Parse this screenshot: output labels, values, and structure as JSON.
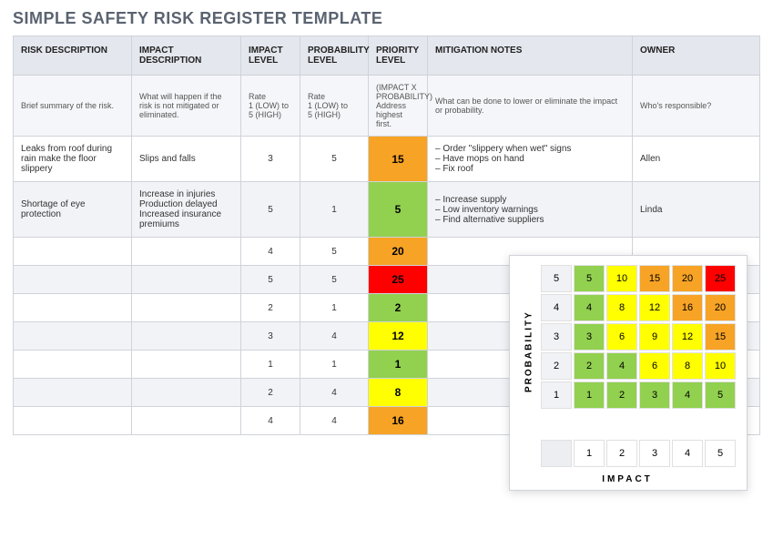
{
  "title": "SIMPLE SAFETY RISK REGISTER TEMPLATE",
  "columns": [
    {
      "label": "RISK DESCRIPTION",
      "help": "Brief summary of the risk."
    },
    {
      "label": "IMPACT DESCRIPTION",
      "help": "What will happen if the risk is not mitigated or eliminated."
    },
    {
      "label": "IMPACT LEVEL",
      "help": "Rate\n1 (LOW) to\n5 (HIGH)"
    },
    {
      "label": "PROBABILITY LEVEL",
      "help": "Rate\n1 (LOW) to\n5 (HIGH)"
    },
    {
      "label": "PRIORITY LEVEL",
      "help": "(IMPACT X PROBABILITY)\nAddress highest first."
    },
    {
      "label": "MITIGATION NOTES",
      "help": "What can be done to lower or eliminate the impact or probability."
    },
    {
      "label": "OWNER",
      "help": "Who's responsible?"
    }
  ],
  "priority_colors": {
    "c_red": "#ff0000",
    "c_orange_dk": "#f7a325",
    "c_orange": "#ffc000",
    "c_yellow": "#ffff00",
    "c_green": "#92d050",
    "c_green_lt": "#a9d08e"
  },
  "rows": [
    {
      "risk": "Leaks from roof during rain make the floor slippery",
      "impact_desc": "Slips and falls",
      "impact": 3,
      "prob": 5,
      "priority": 15,
      "priority_color": "#f7a325",
      "mitigation": [
        "Order \"slippery when wet\" signs",
        "Have mops on hand",
        "Fix roof"
      ],
      "owner": "Allen"
    },
    {
      "risk": "Shortage of eye protection",
      "impact_desc": "Increase in injuries\nProduction delayed\nIncreased insurance premiums",
      "impact": 5,
      "prob": 1,
      "priority": 5,
      "priority_color": "#92d050",
      "mitigation": [
        "Increase supply",
        "Low inventory warnings",
        "Find alternative suppliers"
      ],
      "owner": "Linda"
    },
    {
      "risk": "",
      "impact_desc": "",
      "impact": 4,
      "prob": 5,
      "priority": 20,
      "priority_color": "#f7a325",
      "mitigation": [],
      "owner": ""
    },
    {
      "risk": "",
      "impact_desc": "",
      "impact": 5,
      "prob": 5,
      "priority": 25,
      "priority_color": "#ff0000",
      "mitigation": [],
      "owner": ""
    },
    {
      "risk": "",
      "impact_desc": "",
      "impact": 2,
      "prob": 1,
      "priority": 2,
      "priority_color": "#92d050",
      "mitigation": [],
      "owner": ""
    },
    {
      "risk": "",
      "impact_desc": "",
      "impact": 3,
      "prob": 4,
      "priority": 12,
      "priority_color": "#ffff00",
      "mitigation": [],
      "owner": ""
    },
    {
      "risk": "",
      "impact_desc": "",
      "impact": 1,
      "prob": 1,
      "priority": 1,
      "priority_color": "#92d050",
      "mitigation": [],
      "owner": ""
    },
    {
      "risk": "",
      "impact_desc": "",
      "impact": 2,
      "prob": 4,
      "priority": 8,
      "priority_color": "#ffff00",
      "mitigation": [],
      "owner": ""
    },
    {
      "risk": "",
      "impact_desc": "",
      "impact": 4,
      "prob": 4,
      "priority": 16,
      "priority_color": "#f7a325",
      "mitigation": [],
      "owner": ""
    }
  ],
  "matrix": {
    "y_label": "PROBABILITY",
    "x_label": "IMPACT",
    "y_headers": [
      5,
      4,
      3,
      2,
      1
    ],
    "x_headers": [
      1,
      2,
      3,
      4,
      5
    ],
    "cells": [
      [
        {
          "v": 5,
          "c": "#92d050"
        },
        {
          "v": 10,
          "c": "#ffff00"
        },
        {
          "v": 15,
          "c": "#f7a325"
        },
        {
          "v": 20,
          "c": "#f7a325"
        },
        {
          "v": 25,
          "c": "#ff0000"
        }
      ],
      [
        {
          "v": 4,
          "c": "#92d050"
        },
        {
          "v": 8,
          "c": "#ffff00"
        },
        {
          "v": 12,
          "c": "#ffff00"
        },
        {
          "v": 16,
          "c": "#f7a325"
        },
        {
          "v": 20,
          "c": "#f7a325"
        }
      ],
      [
        {
          "v": 3,
          "c": "#92d050"
        },
        {
          "v": 6,
          "c": "#ffff00"
        },
        {
          "v": 9,
          "c": "#ffff00"
        },
        {
          "v": 12,
          "c": "#ffff00"
        },
        {
          "v": 15,
          "c": "#f7a325"
        }
      ],
      [
        {
          "v": 2,
          "c": "#92d050"
        },
        {
          "v": 4,
          "c": "#92d050"
        },
        {
          "v": 6,
          "c": "#ffff00"
        },
        {
          "v": 8,
          "c": "#ffff00"
        },
        {
          "v": 10,
          "c": "#ffff00"
        }
      ],
      [
        {
          "v": 1,
          "c": "#92d050"
        },
        {
          "v": 2,
          "c": "#92d050"
        },
        {
          "v": 3,
          "c": "#92d050"
        },
        {
          "v": 4,
          "c": "#92d050"
        },
        {
          "v": 5,
          "c": "#92d050"
        }
      ]
    ]
  }
}
